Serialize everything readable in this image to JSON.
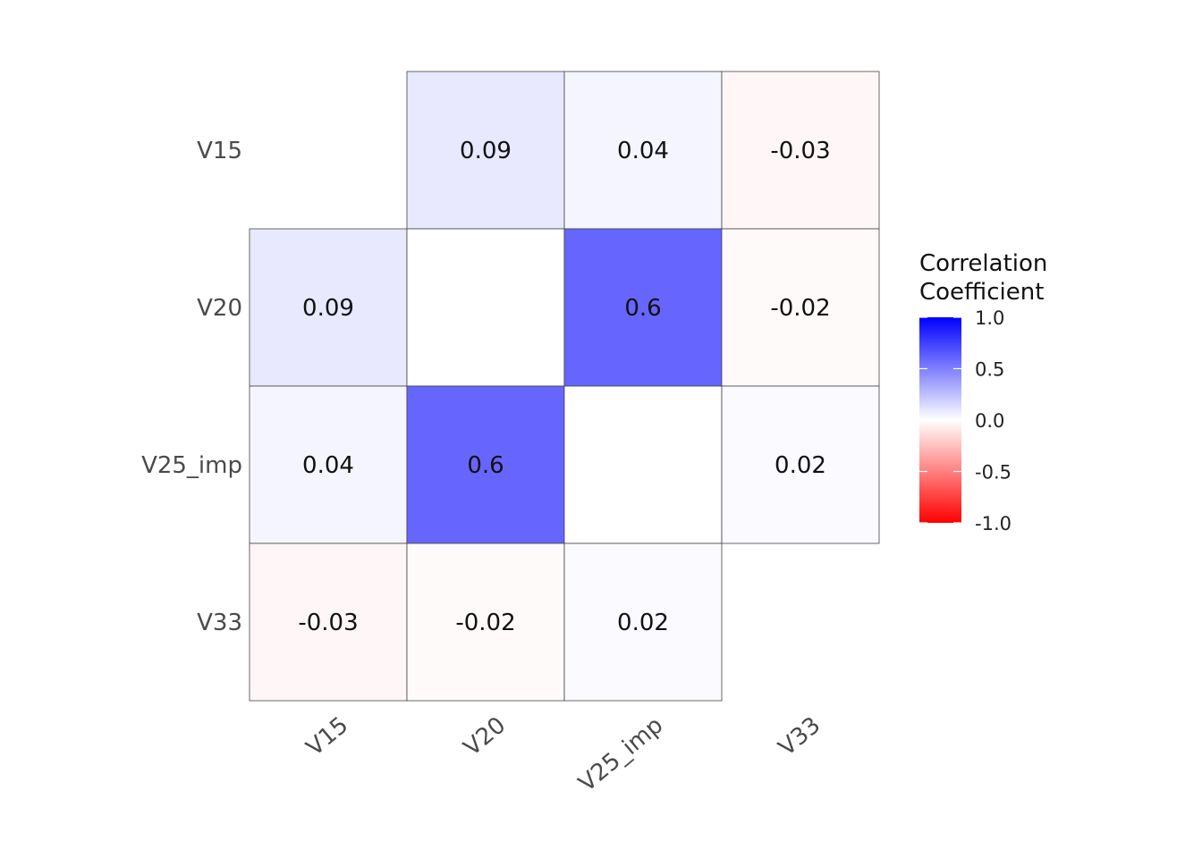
{
  "chart_data": {
    "type": "heatmap",
    "x_categories": [
      "V15",
      "V20",
      "V25_imp",
      "V33"
    ],
    "y_categories": [
      "V15",
      "V20",
      "V25_imp",
      "V33"
    ],
    "cells": [
      {
        "x": "V20",
        "y": "V15",
        "value": 0.09,
        "label": "0.09"
      },
      {
        "x": "V25_imp",
        "y": "V15",
        "value": 0.04,
        "label": "0.04"
      },
      {
        "x": "V33",
        "y": "V15",
        "value": -0.03,
        "label": "-0.03"
      },
      {
        "x": "V15",
        "y": "V20",
        "value": 0.09,
        "label": "0.09"
      },
      {
        "x": "V20",
        "y": "V20",
        "value": 0,
        "label": ""
      },
      {
        "x": "V25_imp",
        "y": "V20",
        "value": 0.6,
        "label": "0.6"
      },
      {
        "x": "V33",
        "y": "V20",
        "value": -0.02,
        "label": "-0.02"
      },
      {
        "x": "V15",
        "y": "V25_imp",
        "value": 0.04,
        "label": "0.04"
      },
      {
        "x": "V20",
        "y": "V25_imp",
        "value": 0.6,
        "label": "0.6"
      },
      {
        "x": "V25_imp",
        "y": "V25_imp",
        "value": 0,
        "label": ""
      },
      {
        "x": "V33",
        "y": "V25_imp",
        "value": 0.02,
        "label": "0.02"
      },
      {
        "x": "V15",
        "y": "V33",
        "value": -0.03,
        "label": "-0.03"
      },
      {
        "x": "V20",
        "y": "V33",
        "value": -0.02,
        "label": "-0.02"
      },
      {
        "x": "V25_imp",
        "y": "V33",
        "value": 0.02,
        "label": "0.02"
      }
    ],
    "legend": {
      "title_lines": [
        "Correlation",
        "Coefficient"
      ],
      "ticks": [
        1.0,
        0.5,
        0.0,
        -0.5,
        -1.0
      ],
      "tick_labels": [
        "1.0",
        "0.5",
        "0.0",
        "-0.5",
        "-1.0"
      ],
      "range": [
        -1,
        1
      ],
      "position": "right"
    },
    "colors": {
      "low": "#ff0000",
      "mid": "#ffffff",
      "high": "#0000ff"
    },
    "grid": false
  }
}
